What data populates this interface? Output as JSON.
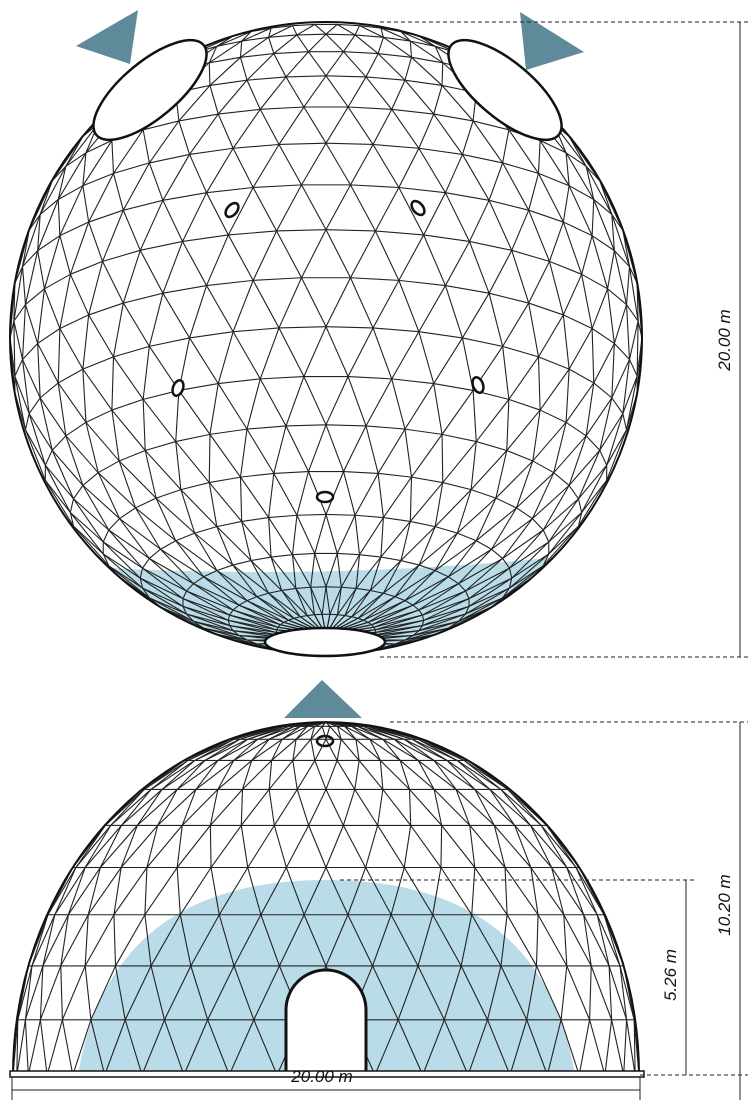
{
  "dimensions": {
    "sphere_height": "20.00 m",
    "dome_height": "10.20 m",
    "blue_height": "5.26 m",
    "width": "20.00 m"
  }
}
